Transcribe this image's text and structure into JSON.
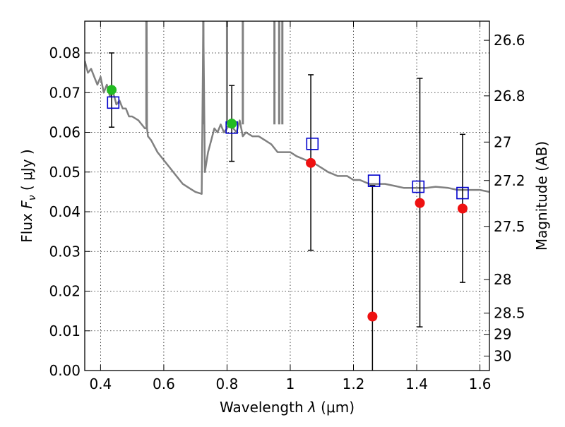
{
  "chart_data": {
    "type": "scatter",
    "xlabel_prefix": "Wavelength",
    "xlabel_symbol": "λ",
    "xlabel_unit": "(μm)",
    "ylabel_prefix": "Flux",
    "ylabel_symbol": "F",
    "ylabel_subscript": "ν",
    "ylabel_unit": "( μJy )",
    "y2label": "Magnitude (AB)",
    "xlim": [
      0.35,
      1.63
    ],
    "ylim": [
      0.0,
      0.088
    ],
    "grid": true,
    "x_ticks": [
      {
        "value": 0.4,
        "label": "0.4"
      },
      {
        "value": 0.6,
        "label": "0.6"
      },
      {
        "value": 0.8,
        "label": "0.8"
      },
      {
        "value": 1.0,
        "label": "1"
      },
      {
        "value": 1.2,
        "label": "1.2"
      },
      {
        "value": 1.4,
        "label": "1.4"
      },
      {
        "value": 1.6,
        "label": "1.6"
      }
    ],
    "y_ticks": [
      {
        "value": 0.0,
        "label": "0.00"
      },
      {
        "value": 0.01,
        "label": "0.01"
      },
      {
        "value": 0.02,
        "label": "0.02"
      },
      {
        "value": 0.03,
        "label": "0.03"
      },
      {
        "value": 0.04,
        "label": "0.04"
      },
      {
        "value": 0.05,
        "label": "0.05"
      },
      {
        "value": 0.06,
        "label": "0.06"
      },
      {
        "value": 0.07,
        "label": "0.07"
      },
      {
        "value": 0.08,
        "label": "0.08"
      }
    ],
    "y2_ticks": [
      {
        "value": 26.6,
        "label": "26.6"
      },
      {
        "value": 26.8,
        "label": "26.8"
      },
      {
        "value": 27.0,
        "label": "27"
      },
      {
        "value": 27.2,
        "label": "27.2"
      },
      {
        "value": 27.5,
        "label": "27.5"
      },
      {
        "value": 28.0,
        "label": "28"
      },
      {
        "value": 28.5,
        "label": "28.5"
      },
      {
        "value": 29.0,
        "label": "29"
      },
      {
        "value": 30.0,
        "label": "30"
      }
    ],
    "series": [
      {
        "kind": "line",
        "color": "#808080",
        "x": [
          0.35,
          0.36,
          0.37,
          0.38,
          0.39,
          0.4,
          0.41,
          0.42,
          0.43,
          0.44,
          0.45,
          0.46,
          0.47,
          0.48,
          0.49,
          0.5,
          0.52,
          0.54,
          0.545,
          0.546,
          0.547,
          0.55,
          0.56,
          0.58,
          0.6,
          0.62,
          0.64,
          0.66,
          0.68,
          0.7,
          0.72,
          0.725,
          0.73,
          0.74,
          0.75,
          0.76,
          0.77,
          0.78,
          0.79,
          0.8,
          0.81,
          0.82,
          0.83,
          0.84,
          0.85,
          0.86,
          0.88,
          0.9,
          0.92,
          0.94,
          0.95,
          0.96,
          0.97,
          0.98,
          1.0,
          1.02,
          1.05,
          1.08,
          1.1,
          1.12,
          1.15,
          1.18,
          1.2,
          1.22,
          1.25,
          1.28,
          1.3,
          1.33,
          1.36,
          1.4,
          1.43,
          1.46,
          1.5,
          1.53,
          1.56,
          1.6,
          1.63
        ],
        "y": [
          0.078,
          0.075,
          0.076,
          0.074,
          0.072,
          0.074,
          0.07,
          0.072,
          0.069,
          0.07,
          0.067,
          0.068,
          0.066,
          0.066,
          0.064,
          0.064,
          0.063,
          0.061,
          0.061,
          0.088,
          0.061,
          0.059,
          0.058,
          0.055,
          0.053,
          0.051,
          0.049,
          0.047,
          0.046,
          0.045,
          0.0445,
          0.088,
          0.05,
          0.055,
          0.058,
          0.061,
          0.06,
          0.062,
          0.06,
          0.061,
          0.062,
          0.061,
          0.06,
          0.063,
          0.059,
          0.06,
          0.059,
          0.059,
          0.058,
          0.057,
          0.056,
          0.055,
          0.055,
          0.055,
          0.055,
          0.054,
          0.053,
          0.052,
          0.051,
          0.05,
          0.049,
          0.049,
          0.048,
          0.048,
          0.047,
          0.047,
          0.047,
          0.0465,
          0.046,
          0.046,
          0.046,
          0.0463,
          0.046,
          0.0455,
          0.0455,
          0.0455,
          0.045
        ]
      },
      {
        "kind": "open-square",
        "color": "#0000cc",
        "x": [
          0.44,
          0.815,
          1.07,
          1.265,
          1.405,
          1.545
        ],
        "y": [
          0.0675,
          0.0612,
          0.0571,
          0.0478,
          0.0463,
          0.0447
        ]
      },
      {
        "kind": "filled-circle",
        "color": "#22bb22",
        "x": [
          0.435,
          0.815
        ],
        "y": [
          0.0707,
          0.0622
        ],
        "err": [
          [
            0.0613,
            0.08
          ],
          [
            0.0527,
            0.0718
          ]
        ]
      },
      {
        "kind": "filled-circle",
        "color": "#ee1111",
        "x": [
          1.065,
          1.26,
          1.41,
          1.545
        ],
        "y": [
          0.0523,
          0.0136,
          0.0422,
          0.0408
        ],
        "err": [
          [
            0.0303,
            0.0745
          ],
          [
            0.0,
            0.0466
          ],
          [
            0.011,
            0.0736
          ],
          [
            0.0222,
            0.0595
          ]
        ]
      }
    ],
    "emission_spikes": [
      {
        "x": 0.545,
        "y": 0.088
      },
      {
        "x": 0.725,
        "y": 0.088
      },
      {
        "x": 0.8,
        "y": 0.088
      },
      {
        "x": 0.85,
        "y": 0.088
      },
      {
        "x": 0.95,
        "y": 0.088
      },
      {
        "x": 0.965,
        "y": 0.088
      },
      {
        "x": 0.975,
        "y": 0.088
      }
    ]
  }
}
